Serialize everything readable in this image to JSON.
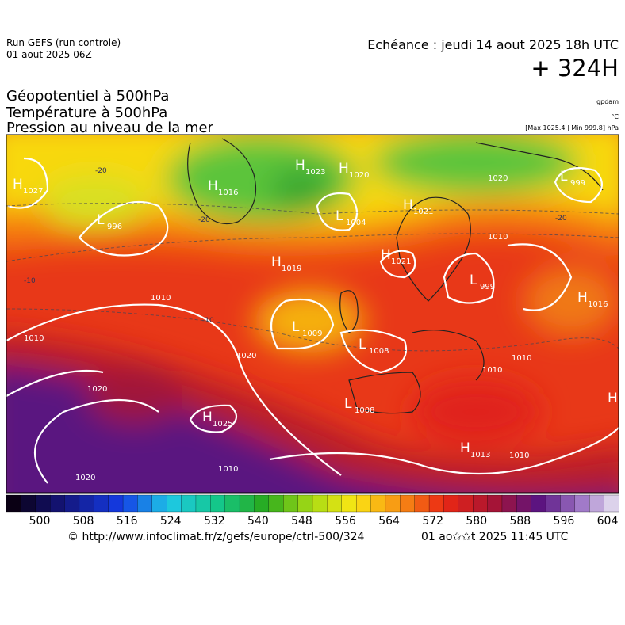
{
  "header": {
    "run": "Run GEFS (run controle)",
    "date": "01 aout 2025 06Z",
    "echeance": "Echéance : jeudi 14 aout 2025 18h UTC",
    "horizon": "+ 324H"
  },
  "fields": [
    "Géopotentiel à 500hPa",
    "Température à 500hPa",
    "Pression au niveau de la mer"
  ],
  "units": [
    "gpdam",
    "°C",
    "[Max 1025.4 | Min 999.8] hPa"
  ],
  "centers": [
    {
      "kind": "H",
      "value": "1027"
    },
    {
      "kind": "L",
      "value": "996"
    },
    {
      "kind": "H",
      "value": "1016"
    },
    {
      "kind": "H",
      "value": "1023"
    },
    {
      "kind": "H",
      "value": "1020"
    },
    {
      "kind": "L",
      "value": "1004"
    },
    {
      "kind": "H",
      "value": "1021"
    },
    {
      "kind": "H",
      "value": "1021"
    },
    {
      "kind": "H",
      "value": "1019"
    },
    {
      "kind": "L",
      "value": "999"
    },
    {
      "kind": "L",
      "value": "999"
    },
    {
      "kind": "H",
      "value": "1016"
    },
    {
      "kind": "L",
      "value": "1009"
    },
    {
      "kind": "L",
      "value": "1008"
    },
    {
      "kind": "L",
      "value": "1008"
    },
    {
      "kind": "H",
      "value": "1025"
    },
    {
      "kind": "H",
      "value": "1013"
    },
    {
      "kind": "H",
      "value": ""
    }
  ],
  "contour_labels": [
    "1010",
    "1010",
    "1020",
    "1020",
    "1020",
    "1010",
    "1020",
    "1010",
    "1010",
    "1010",
    "1010",
    "-20",
    "-20",
    "-20",
    "-10",
    "-10"
  ],
  "colorbar_labels": [
    "500",
    "508",
    "516",
    "524",
    "532",
    "540",
    "548",
    "556",
    "564",
    "572",
    "580",
    "588",
    "596",
    "604"
  ],
  "footer": {
    "url": "© http://www.infoclimat.fr/z/gefs/europe/ctrl-500/324",
    "time": "01 ao✩✩t 2025 11:45 UTC"
  }
}
